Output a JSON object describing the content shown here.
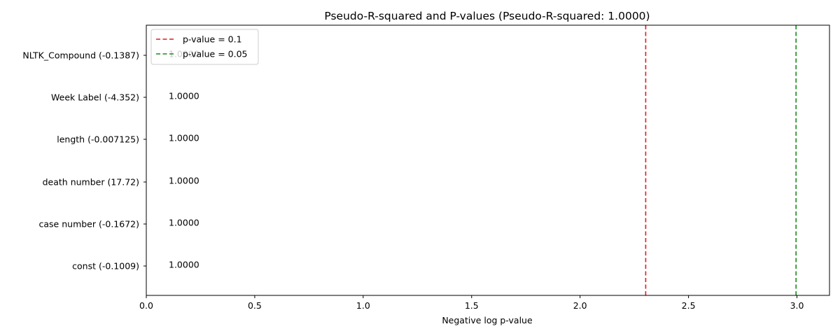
{
  "chart_data": {
    "type": "bar",
    "orientation": "horizontal",
    "title": "Pseudo-R-squared and P-values (Pseudo-R-squared: 1.0000)",
    "xlabel": "Negative log p-value",
    "ylabel": "",
    "xlim": [
      0,
      3.15
    ],
    "x_ticks": [
      "0.0",
      "0.5",
      "1.0",
      "1.5",
      "2.0",
      "2.5",
      "3.0"
    ],
    "categories": [
      "const (-0.1009)",
      "case number (-0.1672)",
      "death number (17.72)",
      "length (-0.007125)",
      "Week Label (-4.352)",
      "NLTK_Compound (-0.1387)"
    ],
    "values": [
      0.0,
      0.0,
      0.0,
      0.0,
      0.0,
      0.0
    ],
    "bar_labels": [
      "1.0000",
      "1.0000",
      "1.0000",
      "1.0000",
      "1.0000",
      "1.0000"
    ],
    "reference_lines": [
      {
        "label": "p-value = 0.1",
        "x": 2.302585,
        "color": "#e31a1c",
        "style": "dashed"
      },
      {
        "label": "p-value = 0.05",
        "x": 2.995732,
        "color": "#1a8a1a",
        "style": "dashed"
      }
    ],
    "legend_position": "upper-left",
    "grid": false
  }
}
